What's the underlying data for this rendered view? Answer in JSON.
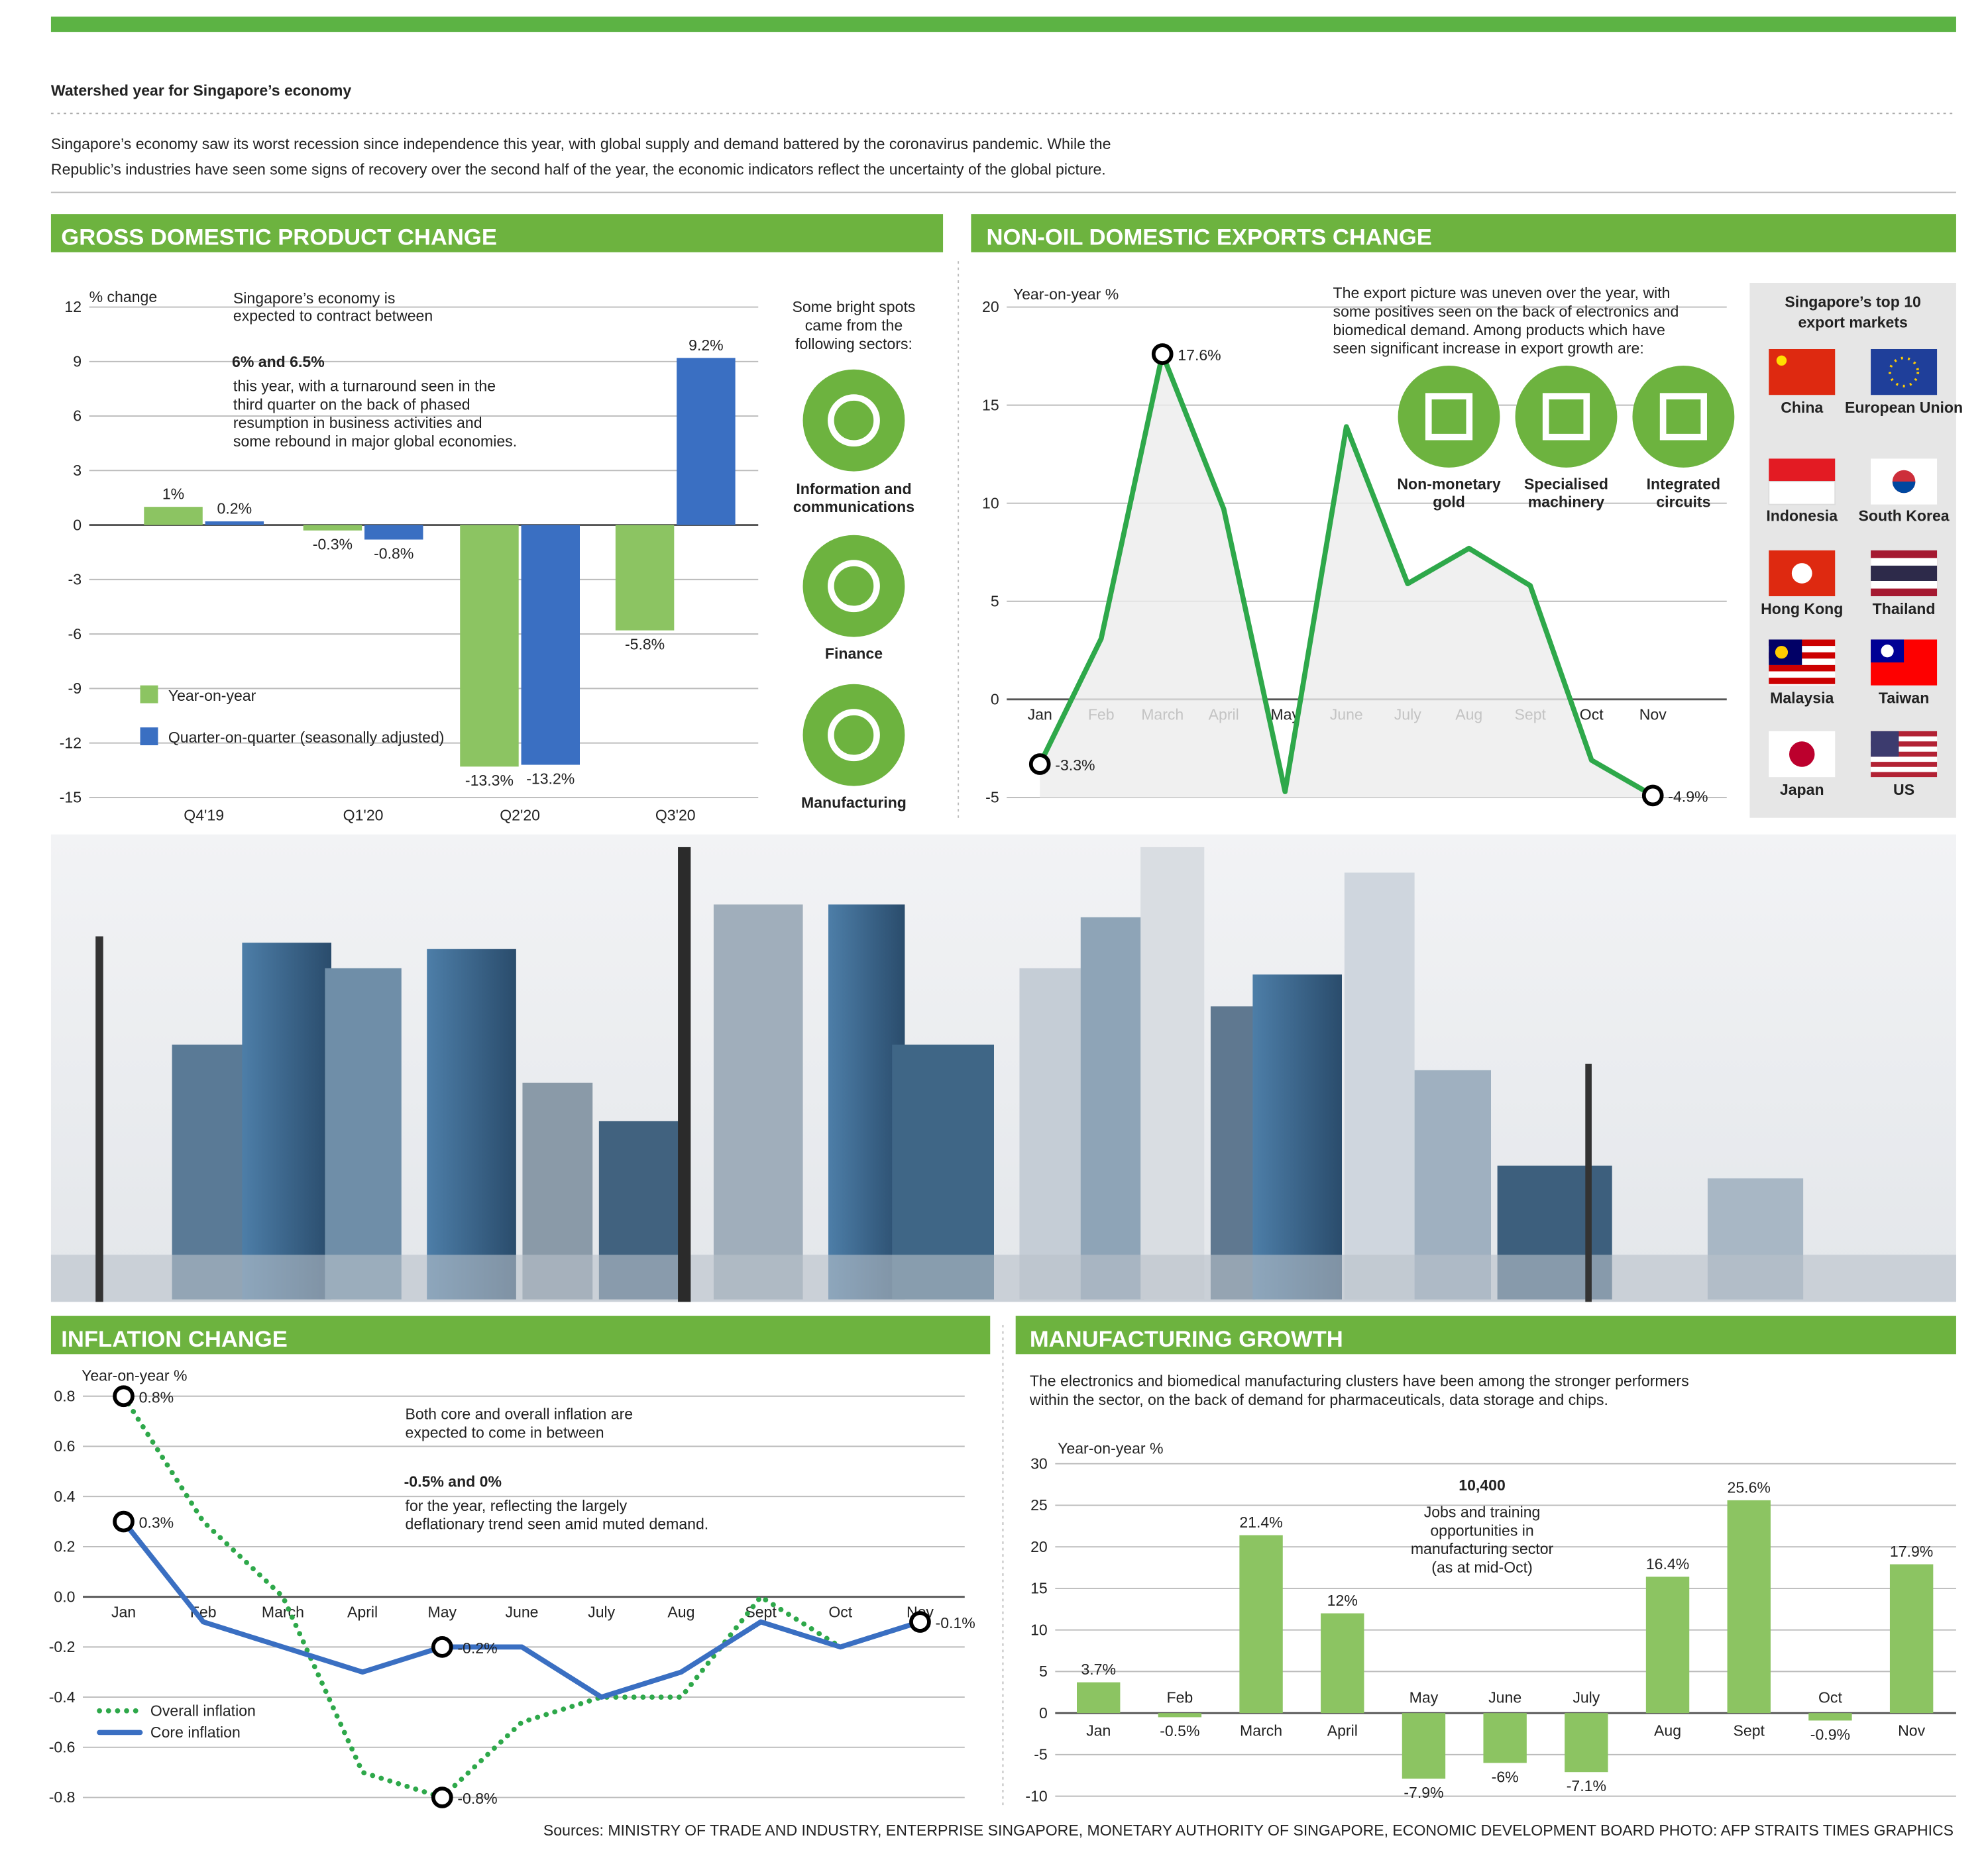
{
  "header": {
    "title": "Watershed year for Singapore’s economy",
    "intro": [
      "Singapore’s economy saw its worst recession since independence this year, with global supply and demand battered by the coronavirus pandemic. While the",
      "Republic’s industries have seen some signs of recovery over the second half of the year, the economic indicators reflect the uncertainty of the global picture."
    ]
  },
  "chart_data": [
    {
      "type": "bar",
      "title": "GROSS DOMESTIC PRODUCT CHANGE",
      "y_label": "% change",
      "categories": [
        "Q4'19",
        "Q1'20",
        "Q2'20",
        "Q3'20"
      ],
      "series": [
        {
          "name": "Year-on-year",
          "color": "#8cc462",
          "values": [
            1,
            -0.3,
            -13.3,
            -5.8
          ],
          "value_labels": [
            "1%",
            "-0.3%",
            "-13.3%",
            "-5.8%"
          ]
        },
        {
          "name": "Quarter-on-quarter (seasonally adjusted)",
          "color": "#3a6fc2",
          "values": [
            0.2,
            -0.8,
            -13.2,
            9.2
          ],
          "value_labels": [
            "0.2%",
            "-0.8%",
            "-13.2%",
            "9.2%"
          ]
        }
      ],
      "ylim": [
        -15,
        12
      ],
      "yticks": [
        -15,
        -12,
        -9,
        -6,
        -3,
        0,
        3,
        6,
        9,
        12
      ],
      "grid": true,
      "callout": {
        "before": [
          "Singapore’s economy is",
          "expected to contract between"
        ],
        "highlight": "6% and 6.5%",
        "after": [
          "this year, with a turnaround seen in the",
          "third quarter on the back of phased",
          "resumption in business activities and",
          "some rebound in major global economies."
        ]
      },
      "sectors": {
        "intro": [
          "Some bright spots",
          "came from the",
          "following sectors:"
        ],
        "items": [
          [
            "Information and",
            "communications"
          ],
          [
            "Finance"
          ],
          [
            "Manufacturing"
          ]
        ]
      }
    },
    {
      "type": "line",
      "title": "NON-OIL DOMESTIC EXPORTS CHANGE",
      "y_label": "Year-on-year %",
      "categories": [
        "Jan",
        "Feb",
        "March",
        "April",
        "May",
        "June",
        "July",
        "Aug",
        "Sept",
        "Oct",
        "Nov"
      ],
      "values": [
        -3.3,
        3.1,
        17.6,
        9.7,
        -4.7,
        13.9,
        5.9,
        7.7,
        5.8,
        -3.1,
        -4.9
      ],
      "value_labels": [
        "-3.3%",
        null,
        "17.6%",
        null,
        null,
        null,
        null,
        null,
        null,
        null,
        "-4.9%"
      ],
      "color": "#2ea84a",
      "ylim": [
        -5,
        20
      ],
      "yticks": [
        -5,
        0,
        5,
        10,
        15,
        20
      ],
      "grid": true,
      "callout": [
        "The export picture was uneven over the year, with",
        "some positives seen on the back of electronics and",
        "biomedical demand. Among products which have",
        "seen significant increase in export growth are:"
      ],
      "products": [
        [
          "Non-monetary",
          "gold"
        ],
        [
          "Specialised",
          "machinery"
        ],
        [
          "Integrated",
          "circuits"
        ]
      ],
      "top_markets": {
        "title": [
          "Singapore’s top 10",
          "export markets"
        ],
        "markets": [
          "China",
          "European Union",
          "Indonesia",
          "South Korea",
          "Hong Kong",
          "Thailand",
          "Malaysia",
          "Taiwan",
          "Japan",
          "US"
        ]
      }
    },
    {
      "type": "line",
      "title": "INFLATION CHANGE",
      "y_label": "Year-on-year %",
      "categories": [
        "Jan",
        "Feb",
        "March",
        "April",
        "May",
        "June",
        "July",
        "Aug",
        "Sept",
        "Oct",
        "Nov"
      ],
      "series": [
        {
          "name": "Overall inflation",
          "color": "#2ea84a",
          "line_style": "dotted",
          "values": [
            0.8,
            0.3,
            0,
            -0.7,
            -0.8,
            -0.5,
            -0.4,
            -0.4,
            0,
            -0.2,
            -0.1
          ],
          "value_labels": [
            "0.8%",
            null,
            null,
            null,
            "-0.8%",
            null,
            null,
            null,
            null,
            null,
            null
          ]
        },
        {
          "name": "Core inflation",
          "color": "#3a6fc2",
          "line_style": "solid",
          "values": [
            0.3,
            -0.1,
            -0.2,
            -0.3,
            -0.2,
            -0.2,
            -0.4,
            -0.3,
            -0.1,
            -0.2,
            -0.1
          ],
          "value_labels": [
            "0.3%",
            null,
            null,
            null,
            "-0.2%",
            null,
            null,
            null,
            null,
            null,
            "-0.1%"
          ]
        }
      ],
      "ylim": [
        -0.8,
        0.8
      ],
      "yticks": [
        -0.8,
        -0.6,
        -0.4,
        -0.2,
        {
          "value": 0,
          "label": "0.0"
        },
        0.2,
        0.4,
        0.6,
        0.8
      ],
      "grid": true,
      "callout": {
        "before": [
          "Both core and overall inflation are",
          "expected to come in between"
        ],
        "highlight": "-0.5% and 0%",
        "after": [
          "for the year, reflecting the largely",
          "deflationary trend seen amid muted demand."
        ]
      }
    },
    {
      "type": "bar",
      "title": "MANUFACTURING GROWTH",
      "y_label": "Year-on-year %",
      "categories": [
        "Jan",
        "Feb",
        "March",
        "April",
        "May",
        "June",
        "July",
        "Aug",
        "Sept",
        "Oct",
        "Nov"
      ],
      "values": [
        3.7,
        -0.5,
        21.4,
        12,
        -7.9,
        -6,
        -7.1,
        16.4,
        25.6,
        -0.9,
        17.9
      ],
      "value_labels": [
        "3.7%",
        "-0.5%",
        "21.4%",
        "12%",
        "-7.9%",
        "-6%",
        "-7.1%",
        "16.4%",
        "25.6%",
        "-0.9%",
        "17.9%"
      ],
      "color": "#8cc462",
      "ylim": [
        -10,
        30
      ],
      "yticks": [
        -10,
        -5,
        0,
        5,
        10,
        15,
        20,
        25,
        30
      ],
      "grid": true,
      "intro": [
        "The electronics and biomedical manufacturing clusters have been among the stronger performers",
        "within the sector, on the back of demand for pharmaceuticals, data storage and chips."
      ],
      "callout": {
        "highlight": "10,400",
        "after": [
          "Jobs and training",
          "opportunities in",
          "manufacturing sector",
          "(as at mid-Oct)"
        ]
      }
    }
  ],
  "sources": "Sources: MINISTRY OF TRADE AND INDUSTRY, ENTERPRISE SINGAPORE, MONETARY AUTHORITY OF SINGAPORE, ECONOMIC DEVELOPMENT BOARD   PHOTO: AFP   STRAITS TIMES GRAPHICS"
}
